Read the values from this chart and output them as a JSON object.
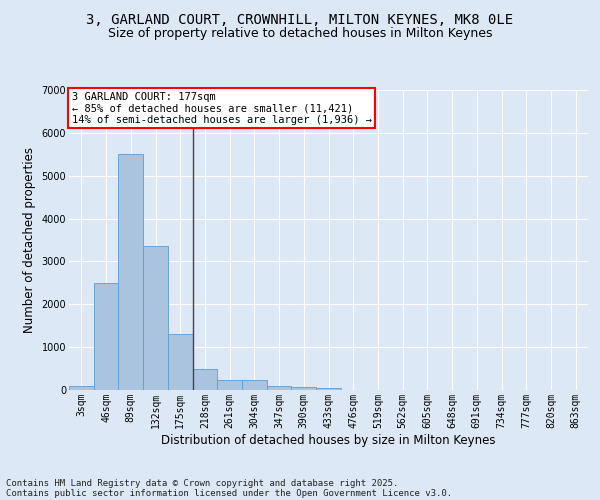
{
  "title_line1": "3, GARLAND COURT, CROWNHILL, MILTON KEYNES, MK8 0LE",
  "title_line2": "Size of property relative to detached houses in Milton Keynes",
  "xlabel": "Distribution of detached houses by size in Milton Keynes",
  "ylabel": "Number of detached properties",
  "categories": [
    "3sqm",
    "46sqm",
    "89sqm",
    "132sqm",
    "175sqm",
    "218sqm",
    "261sqm",
    "304sqm",
    "347sqm",
    "390sqm",
    "433sqm",
    "476sqm",
    "519sqm",
    "562sqm",
    "605sqm",
    "648sqm",
    "691sqm",
    "734sqm",
    "777sqm",
    "820sqm",
    "863sqm"
  ],
  "values": [
    100,
    2500,
    5500,
    3350,
    1300,
    500,
    230,
    230,
    100,
    60,
    40,
    0,
    0,
    0,
    0,
    0,
    0,
    0,
    0,
    0,
    0
  ],
  "bar_color": "#aac4e0",
  "bar_edgecolor": "#5b9bd5",
  "vline_x_index": 4,
  "annotation_text": "3 GARLAND COURT: 177sqm\n← 85% of detached houses are smaller (11,421)\n14% of semi-detached houses are larger (1,936) →",
  "annotation_box_edgecolor": "red",
  "annotation_box_facecolor": "white",
  "footer_line1": "Contains HM Land Registry data © Crown copyright and database right 2025.",
  "footer_line2": "Contains public sector information licensed under the Open Government Licence v3.0.",
  "ylim": [
    0,
    7000
  ],
  "yticks": [
    0,
    1000,
    2000,
    3000,
    4000,
    5000,
    6000,
    7000
  ],
  "background_color": "#dce8f5",
  "plot_background": "#dce8f5",
  "grid_color": "white",
  "title_fontsize": 10,
  "subtitle_fontsize": 9,
  "axis_label_fontsize": 8.5,
  "tick_fontsize": 7,
  "annotation_fontsize": 7.5,
  "footer_fontsize": 6.5
}
